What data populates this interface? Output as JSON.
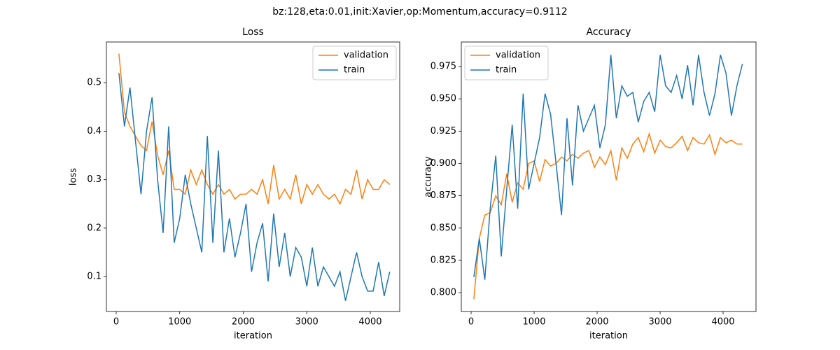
{
  "title": "bz:128,eta:0.01,init:Xavier,op:Momentum,accuracy=0.9112",
  "chart_data": [
    {
      "type": "line",
      "title": "Loss",
      "x_label": "iteration",
      "y_label": "loss",
      "x": [
        43,
        130,
        217,
        304,
        391,
        478,
        565,
        652,
        739,
        826,
        913,
        1000,
        1087,
        1174,
        1261,
        1348,
        1435,
        1522,
        1609,
        1696,
        1783,
        1870,
        1957,
        2044,
        2131,
        2218,
        2305,
        2392,
        2479,
        2566,
        2653,
        2740,
        2827,
        2914,
        3001,
        3088,
        3175,
        3262,
        3349,
        3436,
        3523,
        3610,
        3697,
        3784,
        3871,
        3958,
        4045,
        4132,
        4219,
        4306
      ],
      "series": [
        {
          "name": "validation",
          "color": "#ff7f0e",
          "values": [
            0.56,
            0.44,
            0.41,
            0.39,
            0.37,
            0.36,
            0.42,
            0.35,
            0.31,
            0.36,
            0.28,
            0.28,
            0.27,
            0.32,
            0.29,
            0.32,
            0.29,
            0.27,
            0.29,
            0.27,
            0.28,
            0.26,
            0.27,
            0.27,
            0.28,
            0.27,
            0.3,
            0.25,
            0.33,
            0.26,
            0.28,
            0.26,
            0.31,
            0.25,
            0.29,
            0.27,
            0.29,
            0.27,
            0.26,
            0.27,
            0.25,
            0.28,
            0.27,
            0.32,
            0.26,
            0.3,
            0.28,
            0.28,
            0.3,
            0.29
          ]
        },
        {
          "name": "train",
          "color": "#1f77b4",
          "values": [
            0.52,
            0.41,
            0.49,
            0.38,
            0.27,
            0.4,
            0.47,
            0.3,
            0.19,
            0.41,
            0.17,
            0.22,
            0.31,
            0.25,
            0.2,
            0.15,
            0.39,
            0.17,
            0.36,
            0.15,
            0.22,
            0.14,
            0.19,
            0.25,
            0.11,
            0.17,
            0.21,
            0.09,
            0.23,
            0.12,
            0.19,
            0.1,
            0.16,
            0.14,
            0.08,
            0.16,
            0.08,
            0.12,
            0.1,
            0.08,
            0.11,
            0.05,
            0.1,
            0.15,
            0.1,
            0.07,
            0.07,
            0.13,
            0.06,
            0.11
          ]
        }
      ],
      "xlim": [
        -154,
        4463
      ],
      "xticks": [
        0,
        1000,
        2000,
        3000,
        4000
      ],
      "ylim": [
        0.028,
        0.584
      ],
      "yticks": [
        0.1,
        0.2,
        0.3,
        0.4,
        0.5
      ],
      "legend": "upper right"
    },
    {
      "type": "line",
      "title": "Accuracy",
      "x_label": "iteration",
      "y_label": "accuracy",
      "x": [
        43,
        130,
        217,
        304,
        391,
        478,
        565,
        652,
        739,
        826,
        913,
        1000,
        1087,
        1174,
        1261,
        1348,
        1435,
        1522,
        1609,
        1696,
        1783,
        1870,
        1957,
        2044,
        2131,
        2218,
        2305,
        2392,
        2479,
        2566,
        2653,
        2740,
        2827,
        2914,
        3001,
        3088,
        3175,
        3262,
        3349,
        3436,
        3523,
        3610,
        3697,
        3784,
        3871,
        3958,
        4045,
        4132,
        4219,
        4306
      ],
      "series": [
        {
          "name": "validation",
          "color": "#ff7f0e",
          "values": [
            0.795,
            0.842,
            0.86,
            0.862,
            0.875,
            0.868,
            0.892,
            0.87,
            0.885,
            0.88,
            0.9,
            0.902,
            0.886,
            0.903,
            0.898,
            0.9,
            0.905,
            0.902,
            0.907,
            0.904,
            0.908,
            0.91,
            0.897,
            0.905,
            0.899,
            0.91,
            0.887,
            0.912,
            0.904,
            0.915,
            0.92,
            0.909,
            0.923,
            0.908,
            0.918,
            0.913,
            0.912,
            0.916,
            0.921,
            0.91,
            0.92,
            0.916,
            0.915,
            0.922,
            0.907,
            0.92,
            0.916,
            0.918,
            0.915,
            0.915
          ]
        },
        {
          "name": "train",
          "color": "#1f77b4",
          "values": [
            0.812,
            0.842,
            0.81,
            0.866,
            0.906,
            0.828,
            0.88,
            0.93,
            0.865,
            0.954,
            0.88,
            0.9,
            0.92,
            0.954,
            0.938,
            0.9,
            0.86,
            0.935,
            0.883,
            0.945,
            0.925,
            0.935,
            0.945,
            0.912,
            0.93,
            0.984,
            0.935,
            0.96,
            0.952,
            0.955,
            0.932,
            0.948,
            0.955,
            0.94,
            0.984,
            0.96,
            0.955,
            0.968,
            0.95,
            0.976,
            0.945,
            0.984,
            0.955,
            0.937,
            0.954,
            0.984,
            0.97,
            0.937,
            0.96,
            0.977
          ]
        }
      ],
      "xlim": [
        -156,
        4522
      ],
      "xticks": [
        0,
        1000,
        2000,
        3000,
        4000
      ],
      "ylim": [
        0.7854,
        0.994
      ],
      "yticks": [
        {
          "value": 0.8,
          "label": "0.800"
        },
        0.825,
        {
          "value": 0.85,
          "label": "0.850"
        },
        0.875,
        {
          "value": 0.9,
          "label": "0.900"
        },
        0.925,
        {
          "value": 0.95,
          "label": "0.950"
        },
        0.975
      ],
      "legend": "upper left"
    }
  ]
}
